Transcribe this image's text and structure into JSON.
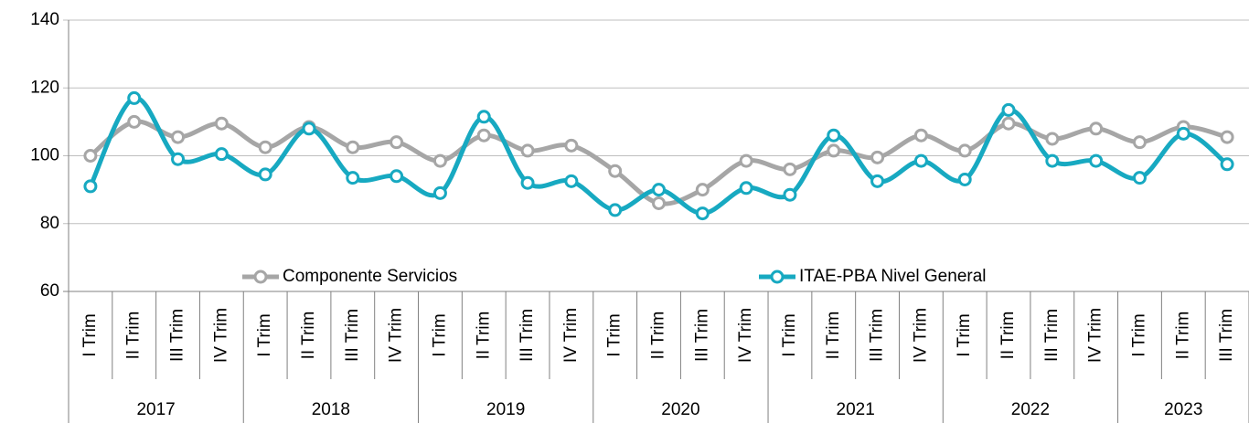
{
  "chart_data": {
    "type": "line",
    "categories": [
      "I Trim",
      "II Trim",
      "III Trim",
      "IV Trim",
      "I Trim",
      "II Trim",
      "III Trim",
      "IV Trim",
      "I Trim",
      "II Trim",
      "III Trim",
      "IV Trim",
      "I Trim",
      "II Trim",
      "III Trim",
      "IV Trim",
      "I Trim",
      "II Trim",
      "III Trim",
      "IV Trim",
      "I Trim",
      "II Trim",
      "III Trim",
      "IV Trim",
      "I Trim",
      "II Trim",
      "III Trim"
    ],
    "years": [
      "2017",
      null,
      null,
      null,
      "2018",
      null,
      null,
      null,
      "2019",
      null,
      null,
      null,
      "2020",
      null,
      null,
      null,
      "2021",
      null,
      null,
      null,
      "2022",
      null,
      null,
      null,
      "2023",
      null,
      null
    ],
    "series": [
      {
        "name": "Componente Servicios",
        "color": "#a6a6a6",
        "values": [
          100,
          110,
          105.5,
          109.5,
          102.5,
          108.5,
          102.5,
          104,
          98.5,
          106,
          101.5,
          103,
          95.5,
          86,
          90,
          98.5,
          96,
          101.5,
          99.5,
          106,
          101.5,
          109.5,
          105,
          108,
          104,
          108.5,
          105.5
        ]
      },
      {
        "name": "ITAE-PBA Nivel General",
        "color": "#17a9c1",
        "values": [
          91,
          117,
          99,
          100.5,
          94.5,
          108,
          93.5,
          94,
          89,
          111.5,
          92,
          92.5,
          84,
          90,
          83,
          90.5,
          88.5,
          106,
          92.5,
          98.5,
          93,
          113.5,
          98.5,
          98.5,
          93.5,
          106.5,
          97.5
        ]
      }
    ],
    "ylim": [
      60,
      140
    ],
    "yticks": [
      60,
      80,
      100,
      120,
      140
    ],
    "grid": true,
    "legend": "bottom",
    "smooth": true
  }
}
